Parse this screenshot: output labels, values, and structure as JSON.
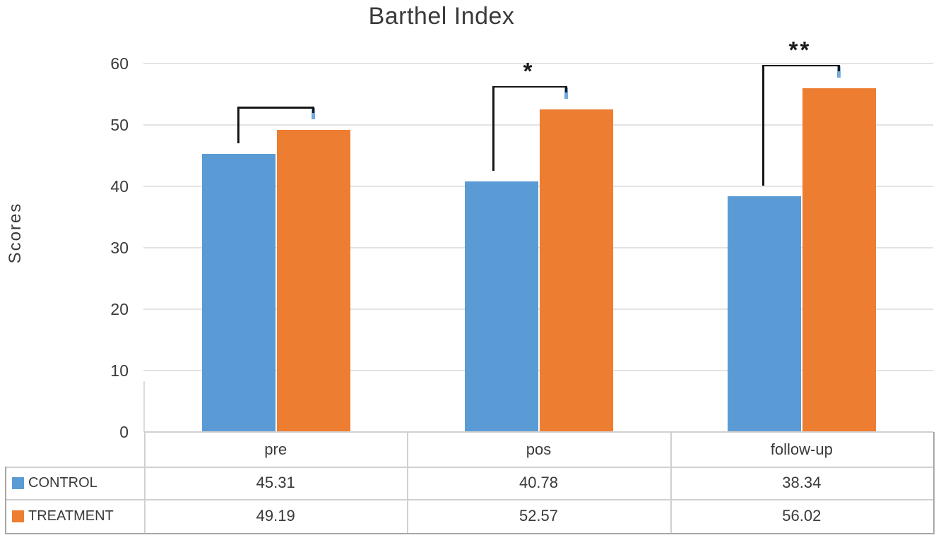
{
  "page": {
    "background": "#ffffff"
  },
  "chart_data": {
    "type": "bar",
    "title": "Barthel Index",
    "ylabel": "Scores",
    "xlabel": "",
    "categories": [
      "pre",
      "pos",
      "follow-up"
    ],
    "series": [
      {
        "name": "CONTROL",
        "color": "#5B9BD5",
        "values": [
          45.31,
          40.78,
          38.34
        ]
      },
      {
        "name": "TREATMENT",
        "color": "#ED7D31",
        "values": [
          49.19,
          52.57,
          56.02
        ]
      }
    ],
    "ylim": [
      0,
      60
    ],
    "y_ticks": [
      0,
      10,
      20,
      30,
      40,
      50,
      60
    ],
    "grid": true,
    "data_table": true,
    "legend_position": "table-rows-left",
    "significance": [
      {
        "category": "pre",
        "label": ""
      },
      {
        "category": "pos",
        "label": "*"
      },
      {
        "category": "follow-up",
        "label": "**"
      }
    ],
    "annotation_colors": {
      "bracket": "#161616",
      "bracket_tick": "#74a9dc"
    }
  }
}
